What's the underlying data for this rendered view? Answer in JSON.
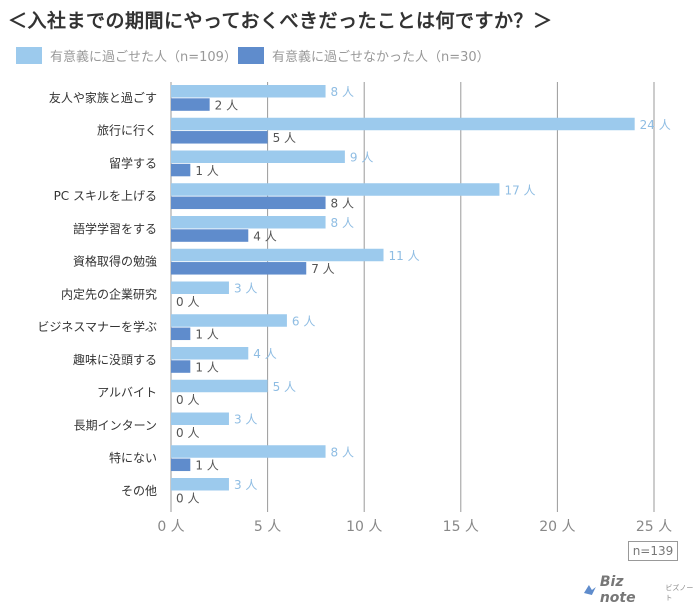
{
  "title": "＜入社までの期間にやっておくべきだったことは何ですか？＞",
  "colors": {
    "series_light": "#9ccaed",
    "series_dark": "#5f8ccc",
    "grid": "#9a9a9a",
    "axis_text": "#888888",
    "category_text": "#333333"
  },
  "chart_data": {
    "type": "bar",
    "orientation": "horizontal",
    "title": "＜入社までの期間にやっておくべきだったことは何ですか？＞",
    "categories": [
      "友人や家族と過ごす",
      "旅行に行く",
      "留学する",
      "PC スキルを上げる",
      "語学学習をする",
      "資格取得の勉強",
      "内定先の企業研究",
      "ビジネスマナーを学ぶ",
      "趣味に没頭する",
      "アルバイト",
      "長期インターン",
      "特にない",
      "その他"
    ],
    "series": [
      {
        "name": "有意義に過ごせた人（n=109）",
        "values": [
          8,
          24,
          9,
          17,
          8,
          11,
          3,
          6,
          4,
          5,
          3,
          8,
          3
        ]
      },
      {
        "name": "有意義に過ごせなかった人（n=30）",
        "values": [
          2,
          5,
          1,
          8,
          4,
          7,
          0,
          1,
          1,
          0,
          0,
          1,
          0
        ]
      }
    ],
    "value_suffix": " 人",
    "xlim": [
      0,
      25
    ],
    "xticks": [
      "0 人",
      "5 人",
      "10 人",
      "15 人",
      "20 人",
      "25 人"
    ],
    "grid": true,
    "legend_position": "top-left"
  },
  "sample_note": "n=139",
  "logo": {
    "text": "Biz note",
    "sub": "ビズノート"
  }
}
